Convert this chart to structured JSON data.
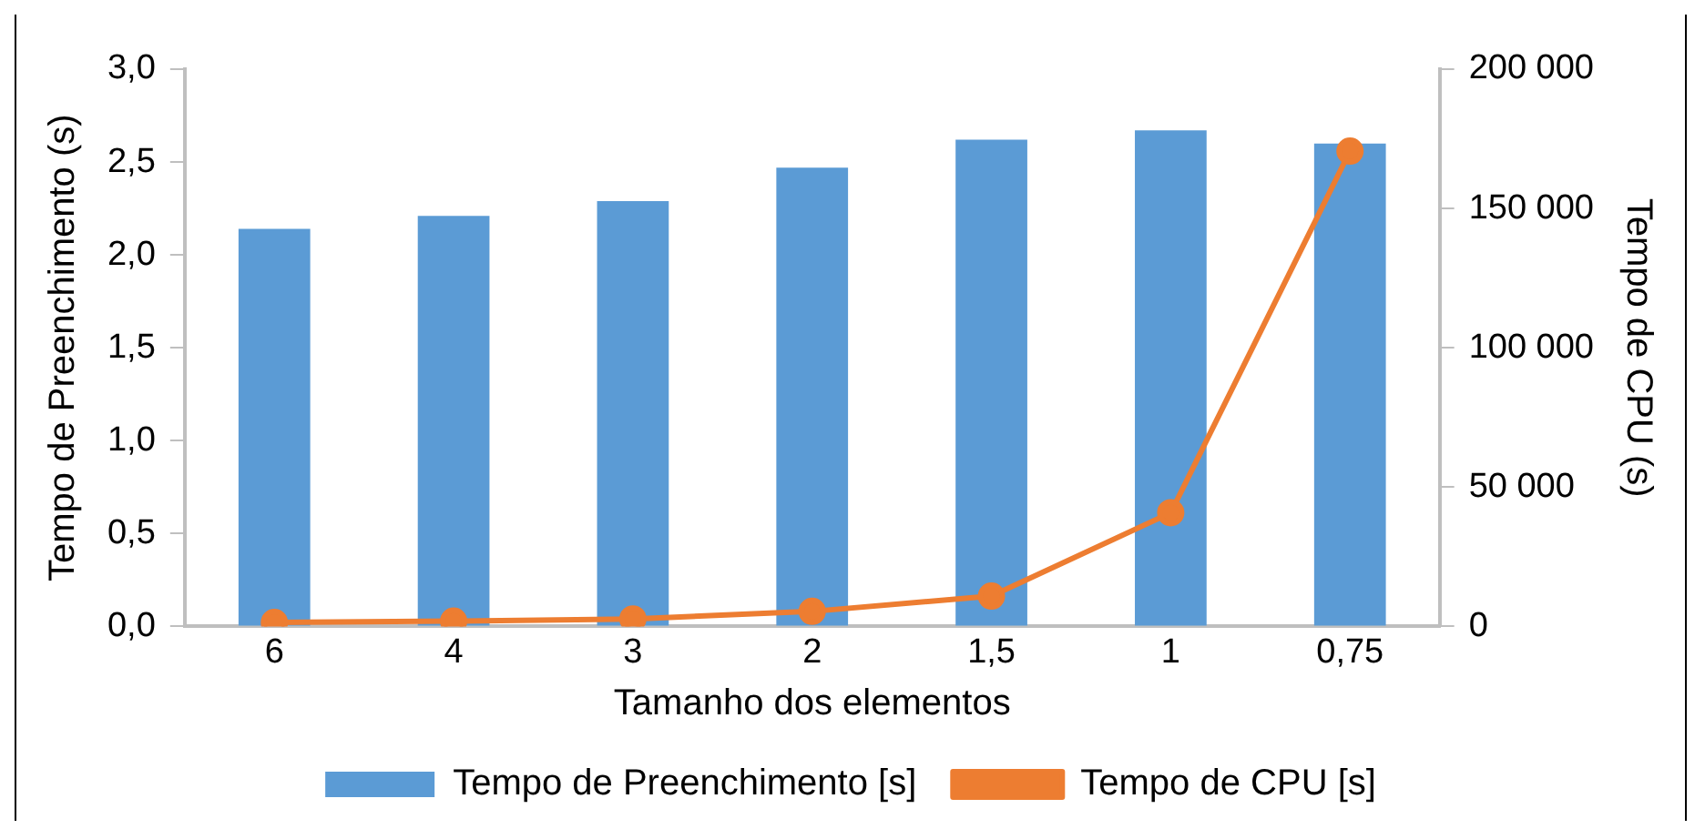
{
  "chart_data": {
    "type": "bar",
    "xlabel": "Tamanho dos elementos",
    "ylabel": "Tempo de Preenchimento (s)",
    "y2label": "Tempo de CPU (s)",
    "categories": [
      "6",
      "4",
      "3",
      "2",
      "1,5",
      "1",
      "0,75"
    ],
    "series": [
      {
        "name": "Tempo de Preenchimento [s]",
        "color": "#5b9bd5",
        "values": [
          2.14,
          2.21,
          2.29,
          2.47,
          2.62,
          2.67,
          2.6
        ]
      },
      {
        "name": "Tempo de CPU [s]",
        "type": "line",
        "axis": "y2",
        "color": "#ed7d31",
        "marker": "circle",
        "values": [
          1400,
          1900,
          2700,
          5400,
          10900,
          40800,
          170600
        ]
      }
    ],
    "ylim": [
      0,
      3
    ],
    "yticks": [
      {
        "value": 0,
        "label": "0,0"
      },
      {
        "value": 0.5,
        "label": "0,5"
      },
      {
        "value": 1,
        "label": "1,0"
      },
      {
        "value": 1.5,
        "label": "1,5"
      },
      {
        "value": 2,
        "label": "2,0"
      },
      {
        "value": 2.5,
        "label": "2,5"
      },
      {
        "value": 3,
        "label": "3,0"
      }
    ],
    "y2lim": [
      0,
      200000
    ],
    "y2ticks": [
      0,
      {
        "value": 50000,
        "label": "50 000"
      },
      {
        "value": 100000,
        "label": "100 000"
      },
      {
        "value": 150000,
        "label": "150 000"
      },
      {
        "value": 200000,
        "label": "200 000"
      }
    ],
    "grid": false,
    "legend": "bottom"
  }
}
